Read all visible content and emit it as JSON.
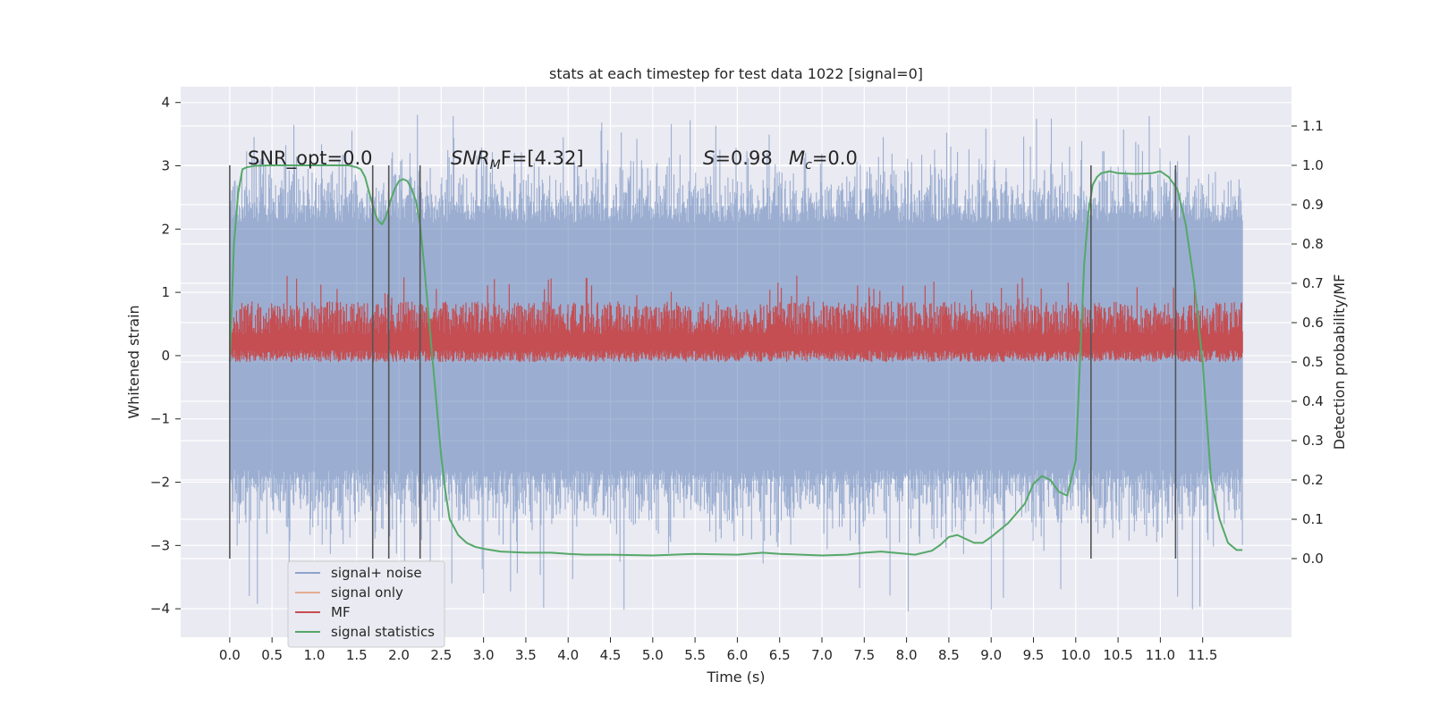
{
  "chart_data": {
    "type": "line",
    "title": "stats at each timestep for test data 1022 [signal=0]",
    "xlabel": "Time (s)",
    "ylabel_left": "Whitened strain",
    "ylabel_right": "Detection probability/MF",
    "xlim": [
      -0.58,
      12.55
    ],
    "ylim_left": [
      -4.45,
      4.25
    ],
    "ylim_right": [
      -0.2,
      1.2
    ],
    "x_ticks": [
      0.0,
      0.5,
      1.0,
      1.5,
      2.0,
      2.5,
      3.0,
      3.5,
      4.0,
      4.5,
      5.0,
      5.5,
      6.0,
      6.5,
      7.0,
      7.5,
      8.0,
      8.5,
      9.0,
      9.5,
      10.0,
      10.5,
      11.0,
      11.5
    ],
    "x_tick_labels": [
      "0.0",
      "0.5",
      "1.0",
      "1.5",
      "2.0",
      "2.5",
      "3.0",
      "3.5",
      "4.0",
      "4.5",
      "5.0",
      "5.5",
      "6.0",
      "6.5",
      "7.0",
      "7.5",
      "8.0",
      "8.5",
      "9.0",
      "9.5",
      "10.0",
      "10.5",
      "11.0",
      "11.5"
    ],
    "y_left_ticks": [
      -4,
      -3,
      -2,
      -1,
      0,
      1,
      2,
      3,
      4
    ],
    "y_left_tick_labels": [
      "−4",
      "−3",
      "−2",
      "−1",
      "0",
      "1",
      "2",
      "3",
      "4"
    ],
    "y_right_ticks": [
      0.0,
      0.1,
      0.2,
      0.3,
      0.4,
      0.5,
      0.6,
      0.7,
      0.8,
      0.9,
      1.0,
      1.1
    ],
    "y_right_tick_labels": [
      "0.0",
      "0.1",
      "0.2",
      "0.3",
      "0.4",
      "0.5",
      "0.6",
      "0.7",
      "0.8",
      "0.9",
      "1.0",
      "1.1"
    ],
    "grid": true,
    "legend_position": "bottom-left",
    "series": [
      {
        "name": "signal+ noise",
        "color": "#4c72b0",
        "kind": "noise-band",
        "x_range": [
          0.0,
          11.97
        ],
        "typical_range": [
          -2.0,
          2.3
        ],
        "extreme_range": [
          -4.1,
          3.85
        ],
        "data_source": "dense strain samples (approx. envelope shown)"
      },
      {
        "name": "signal only",
        "color": "#dd8452",
        "values_note": "flat at zero (signal=0)"
      },
      {
        "name": "MF",
        "color": "#c44e52",
        "kind": "noise-band",
        "axis": "right",
        "x_range": [
          0.0,
          11.97
        ],
        "typical_range": [
          0.0,
          0.14
        ],
        "extreme_range": [
          0.0,
          0.22
        ],
        "offset": 0.5
      },
      {
        "name": "signal statistics",
        "color": "#55a868",
        "axis": "right",
        "x": [
          0.0,
          0.05,
          0.1,
          0.15,
          0.2,
          0.3,
          0.5,
          0.8,
          1.0,
          1.2,
          1.4,
          1.5,
          1.55,
          1.6,
          1.65,
          1.7,
          1.75,
          1.8,
          1.85,
          1.9,
          1.95,
          2.0,
          2.05,
          2.1,
          2.15,
          2.2,
          2.25,
          2.3,
          2.35,
          2.4,
          2.45,
          2.5,
          2.55,
          2.6,
          2.7,
          2.8,
          2.9,
          3.0,
          3.2,
          3.5,
          3.8,
          4.0,
          4.2,
          4.5,
          5.0,
          5.5,
          6.0,
          6.3,
          6.5,
          7.0,
          7.3,
          7.5,
          7.7,
          7.9,
          8.1,
          8.3,
          8.4,
          8.5,
          8.6,
          8.7,
          8.8,
          8.9,
          9.0,
          9.2,
          9.4,
          9.5,
          9.6,
          9.7,
          9.8,
          9.9,
          10.0,
          10.05,
          10.1,
          10.15,
          10.2,
          10.25,
          10.3,
          10.4,
          10.5,
          10.7,
          10.9,
          11.0,
          11.1,
          11.2,
          11.3,
          11.4,
          11.5,
          11.55,
          11.6,
          11.7,
          11.8,
          11.9,
          11.97
        ],
        "y": [
          0.5,
          0.8,
          0.93,
          0.99,
          0.995,
          0.999,
          1.0,
          1.0,
          1.0,
          1.0,
          1.0,
          0.995,
          0.99,
          0.97,
          0.93,
          0.89,
          0.86,
          0.85,
          0.87,
          0.91,
          0.94,
          0.96,
          0.965,
          0.96,
          0.94,
          0.91,
          0.85,
          0.74,
          0.62,
          0.5,
          0.38,
          0.26,
          0.17,
          0.1,
          0.06,
          0.04,
          0.03,
          0.025,
          0.018,
          0.015,
          0.015,
          0.012,
          0.01,
          0.01,
          0.008,
          0.012,
          0.01,
          0.015,
          0.012,
          0.008,
          0.01,
          0.015,
          0.018,
          0.014,
          0.01,
          0.02,
          0.035,
          0.055,
          0.06,
          0.05,
          0.04,
          0.04,
          0.055,
          0.09,
          0.14,
          0.19,
          0.21,
          0.2,
          0.17,
          0.16,
          0.25,
          0.5,
          0.75,
          0.88,
          0.95,
          0.97,
          0.98,
          0.985,
          0.98,
          0.978,
          0.98,
          0.985,
          0.97,
          0.94,
          0.85,
          0.7,
          0.5,
          0.35,
          0.2,
          0.1,
          0.04,
          0.022,
          0.022
        ]
      }
    ],
    "vertical_lines_x": [
      0.0,
      1.69,
      1.88,
      2.25,
      10.18,
      11.18
    ],
    "vertical_line_color": "#555555",
    "annotations": {
      "snr_opt": "SNR_opt=0.0",
      "snr_mf_label": "SNR",
      "snr_mf_sub": "M",
      "snr_mf_rest": "F=[4.32]",
      "s_label": "S",
      "s_rest": "=0.98",
      "mc_label": "M",
      "mc_sub": "c",
      "mc_rest": "=0.0"
    }
  }
}
